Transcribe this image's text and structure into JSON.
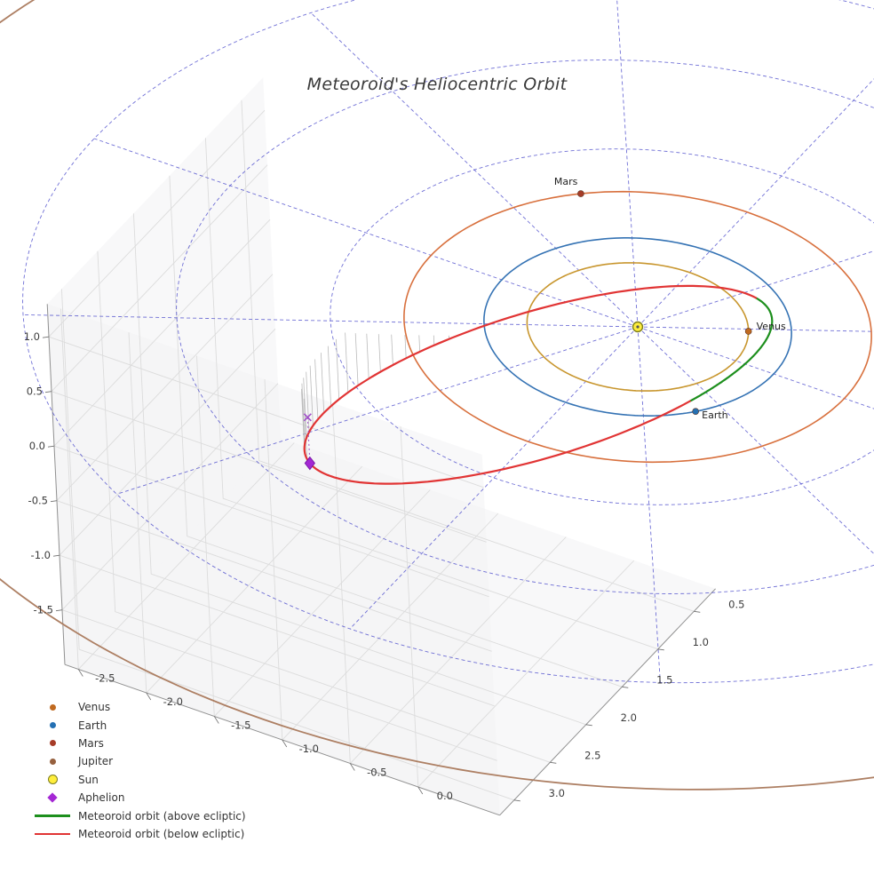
{
  "chart_data": {
    "type": "3d-orbit-plot",
    "title": "Meteoroid's Heliocentric Orbit",
    "sun": {
      "label": "Sun",
      "fill": "#ffee3c",
      "edge": "#7d7d1e"
    },
    "bodies": [
      {
        "name": "Venus",
        "orbit_au": 0.72,
        "angle_deg": -28,
        "orbit_color": "#c8962e",
        "dot_color": "#c06a20",
        "show_label": true,
        "label_offset": [
          9,
          -2
        ]
      },
      {
        "name": "Earth",
        "orbit_au": 1.0,
        "angle_deg": 40,
        "orbit_color": "#3573b4",
        "dot_color": "#2470b3",
        "show_label": true,
        "label_offset": [
          7,
          8
        ]
      },
      {
        "name": "Mars",
        "orbit_au": 1.52,
        "angle_deg": -132,
        "orbit_color": "#d8703d",
        "dot_color": "#a63c28",
        "show_label": true,
        "label_offset": [
          -30,
          -10
        ]
      },
      {
        "name": "Jupiter",
        "orbit_au": 5.2,
        "angle_deg": null,
        "orbit_color": "#ad7f63",
        "dot_color": "#96603e",
        "show_label": false,
        "label_offset": [
          0,
          0
        ]
      }
    ],
    "meteoroid_orbit": {
      "center": [
        -0.587,
        0.316,
        -0.565
      ],
      "axis_u": [
        1.283,
        -0.804,
        0.715
      ],
      "axis_v": [
        -0.192,
        0.287,
        0.6675
      ],
      "above_color": "#1d8f1d",
      "below_color": "#e13434",
      "above_t_range_deg": [
        -62,
        9
      ],
      "aphelion_t_deg": 180,
      "stems_t_range_deg": [
        100,
        176
      ],
      "stem_count": 20
    },
    "aphelion": {
      "label": "Aphelion",
      "marker": "diamond",
      "color": "#a428d4",
      "edge": "#7a1aa8",
      "x_color": "#a050c8",
      "drop_dz": 0.42
    },
    "polar_grid": {
      "color": "#4040c8",
      "radii": [
        1,
        2,
        3,
        4
      ],
      "spoke_step_deg": 30,
      "spoke_extent": 4
    },
    "axes": {
      "x": {
        "ticks": [
          -2.5,
          -2.0,
          -1.5,
          -1.0,
          -0.5,
          0.0
        ],
        "labels": [
          "-2.5",
          "-2.0",
          "-1.5",
          "-1.0",
          "-0.5",
          "0.0"
        ]
      },
      "y": {
        "ticks": [
          0.5,
          1.0,
          1.5,
          2.0,
          2.5,
          3.0
        ],
        "labels": [
          "0.5",
          "1.0",
          "1.5",
          "2.0",
          "2.5",
          "3.0"
        ]
      },
      "z": {
        "ticks": [
          -1.5,
          -1.0,
          -0.5,
          0.0,
          0.5,
          1.0
        ],
        "labels": [
          "-1.5",
          "-1.0",
          "-0.5",
          "0.0",
          "0.5",
          "1.0"
        ]
      }
    },
    "legend": [
      {
        "label": "Venus",
        "type": "dot",
        "color": "#c06a20"
      },
      {
        "label": "Earth",
        "type": "dot",
        "color": "#2470b3"
      },
      {
        "label": "Mars",
        "type": "dot",
        "color": "#a63c28"
      },
      {
        "label": "Jupiter",
        "type": "dot",
        "color": "#96603e"
      },
      {
        "label": "Sun",
        "type": "sun",
        "color": "#ffee3c",
        "edge": "#7d7d1e"
      },
      {
        "label": "Aphelion",
        "type": "diamond",
        "color": "#a428d4"
      },
      {
        "label": "Meteoroid orbit (above ecliptic)",
        "type": "line",
        "color": "#1d8f1d"
      },
      {
        "label": "Meteoroid orbit (below ecliptic)",
        "type": "line",
        "color": "#e13434"
      }
    ]
  }
}
